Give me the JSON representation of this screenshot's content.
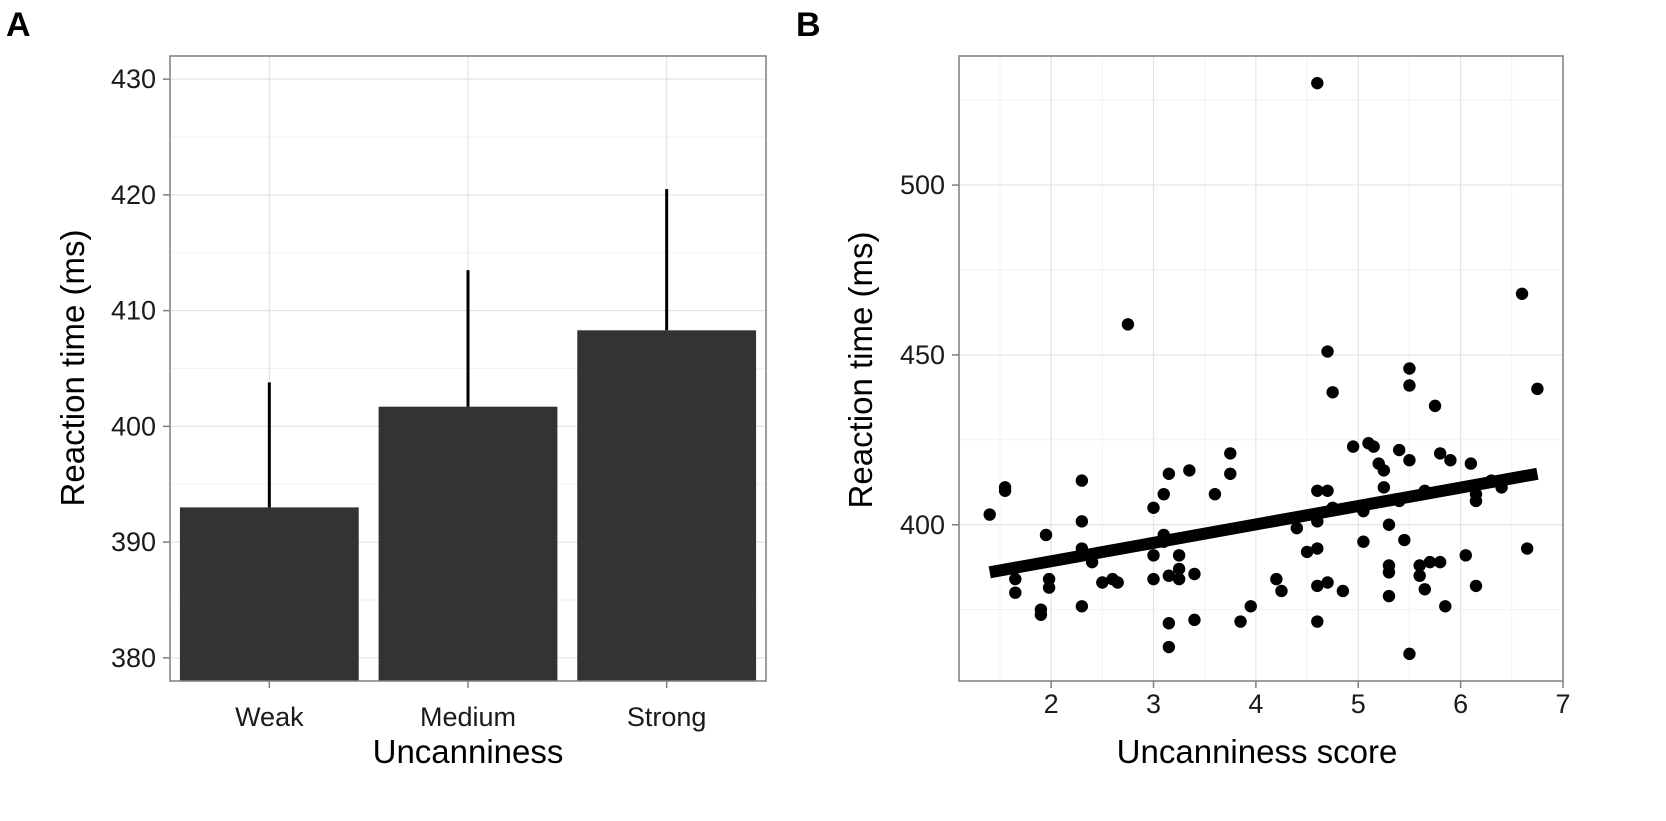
{
  "chart_data": [
    {
      "panel": "A",
      "type": "bar",
      "title": "",
      "xlabel": "Uncanniness",
      "ylabel": "Reaction time (ms)",
      "categories": [
        "Weak",
        "Medium",
        "Strong"
      ],
      "values": [
        393,
        401.7,
        408.3
      ],
      "error_upper": [
        403.8,
        413.5,
        420.5
      ],
      "ylim": [
        378,
        432
      ],
      "yticks": [
        380,
        390,
        400,
        410,
        420,
        430
      ],
      "bar_color": "#333333",
      "grid": true
    },
    {
      "panel": "B",
      "type": "scatter",
      "title": "",
      "xlabel": "Uncanniness score",
      "ylabel": "Reaction time (ms)",
      "xlim": [
        1.1,
        7.0
      ],
      "ylim": [
        354,
        538
      ],
      "xticks": [
        2,
        3,
        4,
        5,
        6,
        7
      ],
      "yticks": [
        400,
        450,
        500
      ],
      "fit_line": {
        "x": [
          1.4,
          6.75
        ],
        "y": [
          386,
          415
        ]
      },
      "point_color": "#000000",
      "grid": true,
      "points": [
        [
          4.6,
          530
        ],
        [
          1.4,
          403
        ],
        [
          1.55,
          411
        ],
        [
          1.55,
          410
        ],
        [
          1.65,
          384
        ],
        [
          1.65,
          380
        ],
        [
          1.9,
          375
        ],
        [
          1.9,
          373.5
        ],
        [
          1.95,
          397
        ],
        [
          1.98,
          381.5
        ],
        [
          1.98,
          384
        ],
        [
          2.3,
          413
        ],
        [
          2.3,
          401
        ],
        [
          2.3,
          376
        ],
        [
          2.3,
          393
        ],
        [
          2.4,
          389
        ],
        [
          2.5,
          383
        ],
        [
          2.6,
          384
        ],
        [
          2.65,
          383
        ],
        [
          2.75,
          459
        ],
        [
          3.0,
          405
        ],
        [
          3.0,
          391
        ],
        [
          3.0,
          384
        ],
        [
          3.1,
          409
        ],
        [
          3.1,
          397
        ],
        [
          3.1,
          395
        ],
        [
          3.15,
          415
        ],
        [
          3.15,
          385
        ],
        [
          3.15,
          371
        ],
        [
          3.15,
          364
        ],
        [
          3.25,
          391
        ],
        [
          3.25,
          387
        ],
        [
          3.25,
          384
        ],
        [
          3.35,
          416
        ],
        [
          3.4,
          385.5
        ],
        [
          3.4,
          372
        ],
        [
          3.6,
          409
        ],
        [
          3.75,
          421
        ],
        [
          3.75,
          415
        ],
        [
          3.85,
          371.5
        ],
        [
          3.95,
          376
        ],
        [
          4.2,
          384
        ],
        [
          4.25,
          380.5
        ],
        [
          4.4,
          399
        ],
        [
          4.5,
          392
        ],
        [
          4.6,
          410
        ],
        [
          4.6,
          401
        ],
        [
          4.6,
          393
        ],
        [
          4.6,
          382
        ],
        [
          4.6,
          371.5
        ],
        [
          4.7,
          451
        ],
        [
          4.7,
          410
        ],
        [
          4.7,
          383
        ],
        [
          4.75,
          439
        ],
        [
          4.75,
          405
        ],
        [
          4.85,
          380.5
        ],
        [
          4.95,
          423
        ],
        [
          5.05,
          404
        ],
        [
          5.05,
          395
        ],
        [
          5.1,
          424
        ],
        [
          5.15,
          423
        ],
        [
          5.2,
          418
        ],
        [
          5.25,
          416
        ],
        [
          5.25,
          411
        ],
        [
          5.3,
          400
        ],
        [
          5.3,
          386
        ],
        [
          5.3,
          379
        ],
        [
          5.3,
          388
        ],
        [
          5.4,
          422
        ],
        [
          5.4,
          407
        ],
        [
          5.45,
          395.5
        ],
        [
          5.5,
          446
        ],
        [
          5.5,
          441
        ],
        [
          5.5,
          419
        ],
        [
          5.5,
          362
        ],
        [
          5.6,
          388
        ],
        [
          5.6,
          385
        ],
        [
          5.65,
          410
        ],
        [
          5.65,
          381
        ],
        [
          5.7,
          389
        ],
        [
          5.75,
          435
        ],
        [
          5.8,
          421
        ],
        [
          5.8,
          389
        ],
        [
          5.85,
          376
        ],
        [
          5.9,
          419
        ],
        [
          6.05,
          391
        ],
        [
          6.1,
          418
        ],
        [
          6.15,
          409
        ],
        [
          6.15,
          407
        ],
        [
          6.15,
          382
        ],
        [
          6.3,
          413
        ],
        [
          6.4,
          411
        ],
        [
          6.6,
          468
        ],
        [
          6.65,
          393
        ],
        [
          6.75,
          440
        ]
      ]
    }
  ]
}
